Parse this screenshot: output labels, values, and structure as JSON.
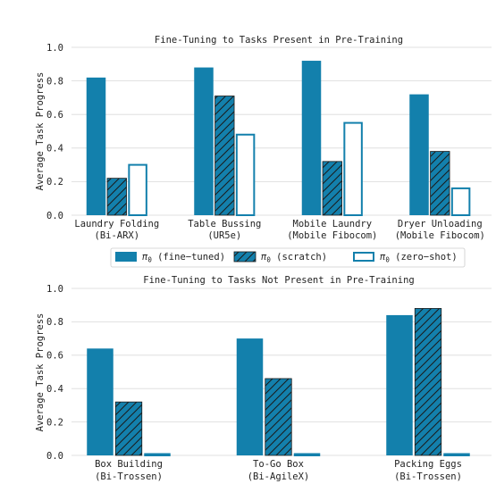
{
  "colors": {
    "primary": "#1380AC",
    "hatch": "#1a1a1a",
    "outline_fill": "#ffffff",
    "grid": "#d9d9d9"
  },
  "legend": {
    "placement": "between-charts",
    "items": [
      {
        "symbol": "π",
        "sub": "0",
        "label": " (fine−tuned)",
        "style": "solid"
      },
      {
        "symbol": "π",
        "sub": "0",
        "label": " (scratch)",
        "style": "hatched"
      },
      {
        "symbol": "π",
        "sub": "0",
        "label": " (zero−shot)",
        "style": "outline"
      }
    ]
  },
  "chart_data": [
    {
      "type": "bar",
      "title": "Fine-Tuning to Tasks Present in Pre-Training",
      "ylabel": "Average Task Progress",
      "xlabel": "",
      "ylim": [
        0,
        1.0
      ],
      "yticks": [
        "0.0",
        "0.2",
        "0.4",
        "0.6",
        "0.8",
        "1.0"
      ],
      "grid": true,
      "categories": [
        [
          "Laundry Folding",
          "(Bi-ARX)"
        ],
        [
          "Table Bussing",
          "(UR5e)"
        ],
        [
          "Mobile Laundry",
          "(Mobile Fibocom)"
        ],
        [
          "Dryer Unloading",
          "(Mobile Fibocom)"
        ]
      ],
      "series": [
        {
          "style": "solid",
          "values": [
            0.82,
            0.88,
            0.92,
            0.72
          ]
        },
        {
          "style": "hatched",
          "values": [
            0.22,
            0.71,
            0.32,
            0.38
          ]
        },
        {
          "style": "outline",
          "values": [
            0.3,
            0.48,
            0.55,
            0.16
          ]
        }
      ]
    },
    {
      "type": "bar",
      "title": "Fine-Tuning to Tasks Not Present in Pre-Training",
      "ylabel": "Average Task Progress",
      "xlabel": "",
      "ylim": [
        0,
        1.0
      ],
      "yticks": [
        "0.0",
        "0.2",
        "0.4",
        "0.6",
        "0.8",
        "1.0"
      ],
      "grid": true,
      "categories": [
        [
          "Box Building",
          "(Bi-Trossen)"
        ],
        [
          "To-Go Box",
          "(Bi-AgileX)"
        ],
        [
          "Packing Eggs",
          "(Bi-Trossen)"
        ]
      ],
      "series": [
        {
          "style": "solid",
          "values": [
            0.64,
            0.7,
            0.84
          ]
        },
        {
          "style": "hatched",
          "values": [
            0.32,
            0.46,
            0.88
          ]
        },
        {
          "style": "outline",
          "values": [
            0.0,
            0.0,
            0.0
          ]
        }
      ]
    }
  ]
}
